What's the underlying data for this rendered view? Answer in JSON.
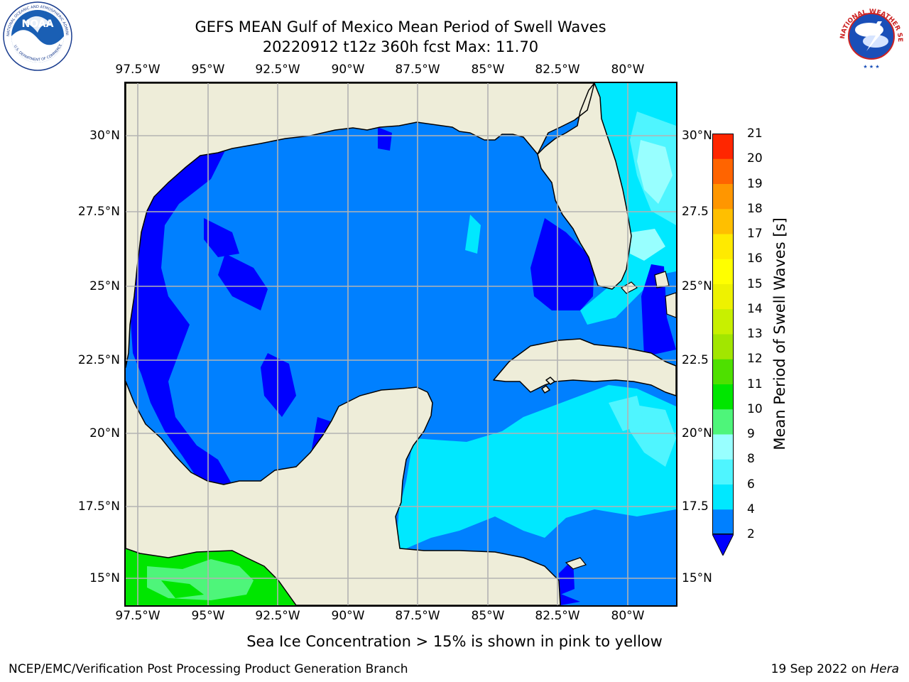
{
  "title": {
    "line1": "GEFS MEAN Gulf of Mexico Mean Period of Swell Waves",
    "line2": "20220912 t12z 360h fcst   Max: 11.70"
  },
  "logos": {
    "left": {
      "text": "NOAA",
      "ring_text": "NATIONAL OCEANIC AND ATMOSPHERIC ADMINISTRATION · U.S. DEPARTMENT OF COMMERCE"
    },
    "right": {
      "ring_text": "NATIONAL WEATHER SERVICE"
    }
  },
  "axes": {
    "lon_ticks": [
      "97.5°W",
      "95°W",
      "92.5°W",
      "90°W",
      "87.5°W",
      "85°W",
      "82.5°W",
      "80°W"
    ],
    "lon_values": [
      -97.5,
      -95,
      -92.5,
      -90,
      -87.5,
      -85,
      -82.5,
      -80
    ],
    "lat_ticks_left": [
      "30°N",
      "27.5°N",
      "25°N",
      "22.5°N",
      "20°N",
      "17.5°N",
      "15°N"
    ],
    "lat_ticks_right": [
      "30°N",
      "27.5",
      "25°N",
      "22.5",
      "20°N",
      "17.5",
      "15°N"
    ],
    "lat_values": [
      30,
      27.5,
      25,
      22.5,
      20,
      17.5,
      15
    ],
    "lon_range": [
      -98,
      -78.2
    ],
    "lat_range": [
      14,
      31.9
    ],
    "grid": true
  },
  "colorbar": {
    "label": "Mean Period of Swell Waves [s]",
    "labels": [
      "2",
      "4",
      "6",
      "8",
      "9",
      "10",
      "11",
      "12",
      "13",
      "14",
      "15",
      "16",
      "17",
      "18",
      "19",
      "20",
      "21"
    ],
    "colors": [
      "#0080ff",
      "#00e8ff",
      "#4ff5ff",
      "#98ffff",
      "#4ef57a",
      "#00e600",
      "#4ee000",
      "#a2e600",
      "#c8f000",
      "#eef200",
      "#ffff00",
      "#ffea00",
      "#ffbf00",
      "#ff9600",
      "#ff6400",
      "#ff2600"
    ],
    "extend_below_color": "#0000ff"
  },
  "map_colors": {
    "land": "#eeedd9",
    "coast": "#000000",
    "grid": "#b3b3b3"
  },
  "note": "Sea Ice Concentration > 15% is shown in pink to yellow",
  "footer": {
    "left": "NCEP/EMC/Verification Post Processing Product Generation Branch",
    "right_date": "19 Sep 2022 on ",
    "right_host": "Hera"
  }
}
